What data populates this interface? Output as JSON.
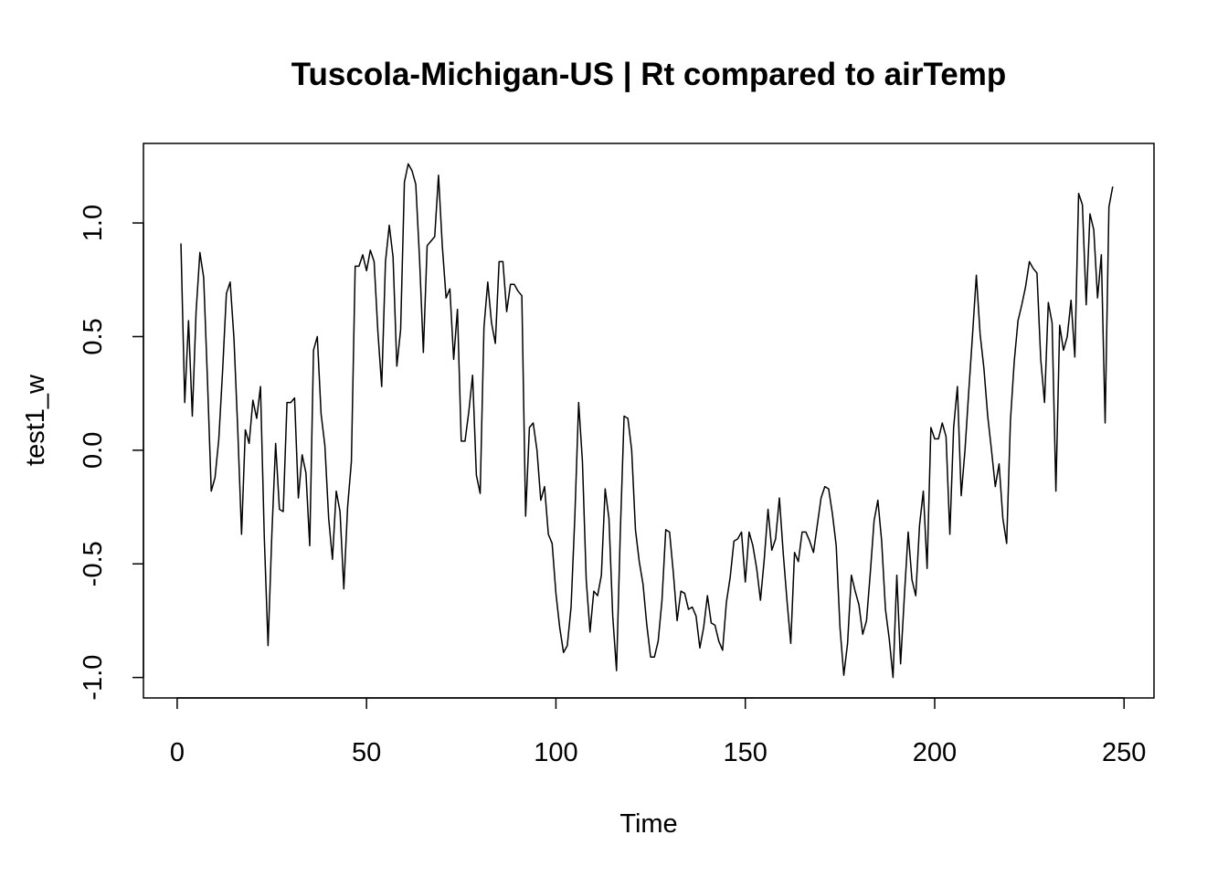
{
  "chart_data": {
    "type": "line",
    "title": "Tuscola-Michigan-US | Rt compared to airTemp",
    "xlabel": "Time",
    "ylabel": "test1_w",
    "xlim": [
      -8.9,
      257.9
    ],
    "ylim": [
      -1.09,
      1.35
    ],
    "x_ticks": [
      0,
      50,
      100,
      150,
      200,
      250
    ],
    "y_ticks": [
      -1.0,
      -0.5,
      0.0,
      0.5,
      1.0
    ],
    "x_tick_labels": [
      "0",
      "50",
      "100",
      "150",
      "200",
      "250"
    ],
    "y_tick_labels": [
      "-1.0",
      "-0.5",
      "0.0",
      "0.5",
      "1.0"
    ],
    "grid": false,
    "legend": "none",
    "line_color": "#000000",
    "x_start": 1,
    "x_step": 1,
    "series": [
      {
        "values": [
          0.91,
          0.21,
          0.57,
          0.15,
          0.61,
          0.87,
          0.76,
          0.31,
          -0.18,
          -0.12,
          0.05,
          0.35,
          0.69,
          0.74,
          0.49,
          0.09,
          -0.37,
          0.09,
          0.03,
          0.22,
          0.14,
          0.28,
          -0.38,
          -0.86,
          -0.37,
          0.03,
          -0.26,
          -0.27,
          0.21,
          0.21,
          0.23,
          -0.21,
          -0.02,
          -0.1,
          -0.42,
          0.44,
          0.5,
          0.16,
          0.02,
          -0.3,
          -0.48,
          -0.18,
          -0.27,
          -0.61,
          -0.25,
          -0.05,
          0.81,
          0.81,
          0.86,
          0.79,
          0.88,
          0.83,
          0.52,
          0.28,
          0.83,
          0.99,
          0.85,
          0.37,
          0.53,
          1.18,
          1.26,
          1.23,
          1.17,
          0.84,
          0.43,
          0.9,
          0.92,
          0.94,
          1.21,
          0.9,
          0.67,
          0.71,
          0.4,
          0.62,
          0.04,
          0.04,
          0.17,
          0.33,
          -0.11,
          -0.19,
          0.54,
          0.74,
          0.56,
          0.47,
          0.83,
          0.83,
          0.61,
          0.73,
          0.73,
          0.7,
          0.68,
          -0.29,
          0.1,
          0.12,
          0.0,
          -0.22,
          -0.16,
          -0.37,
          -0.41,
          -0.63,
          -0.78,
          -0.89,
          -0.86,
          -0.69,
          -0.29,
          0.21,
          -0.05,
          -0.57,
          -0.8,
          -0.62,
          -0.64,
          -0.55,
          -0.17,
          -0.3,
          -0.73,
          -0.97,
          -0.36,
          0.15,
          0.14,
          0.0,
          -0.35,
          -0.49,
          -0.59,
          -0.77,
          -0.91,
          -0.91,
          -0.84,
          -0.66,
          -0.35,
          -0.36,
          -0.54,
          -0.75,
          -0.62,
          -0.63,
          -0.7,
          -0.69,
          -0.73,
          -0.87,
          -0.78,
          -0.64,
          -0.76,
          -0.77,
          -0.84,
          -0.88,
          -0.67,
          -0.56,
          -0.4,
          -0.39,
          -0.36,
          -0.58,
          -0.36,
          -0.42,
          -0.52,
          -0.66,
          -0.48,
          -0.26,
          -0.44,
          -0.39,
          -0.21,
          -0.45,
          -0.66,
          -0.85,
          -0.45,
          -0.49,
          -0.36,
          -0.36,
          -0.4,
          -0.45,
          -0.33,
          -0.21,
          -0.16,
          -0.17,
          -0.28,
          -0.42,
          -0.78,
          -0.99,
          -0.85,
          -0.55,
          -0.62,
          -0.68,
          -0.81,
          -0.75,
          -0.54,
          -0.31,
          -0.22,
          -0.4,
          -0.7,
          -0.83,
          -1.0,
          -0.55,
          -0.94,
          -0.64,
          -0.36,
          -0.57,
          -0.64,
          -0.33,
          -0.18,
          -0.52,
          0.1,
          0.05,
          0.05,
          0.12,
          0.06,
          -0.37,
          0.1,
          0.28,
          -0.2,
          0.0,
          0.26,
          0.51,
          0.77,
          0.51,
          0.36,
          0.15,
          0.0,
          -0.16,
          -0.06,
          -0.3,
          -0.41,
          0.13,
          0.39,
          0.57,
          0.64,
          0.72,
          0.83,
          0.8,
          0.78,
          0.4,
          0.21,
          0.65,
          0.56,
          -0.18,
          0.55,
          0.44,
          0.5,
          0.66,
          0.41,
          1.13,
          1.08,
          0.64,
          1.04,
          0.97,
          0.67,
          0.86,
          0.12,
          1.07,
          1.16
        ]
      }
    ]
  }
}
